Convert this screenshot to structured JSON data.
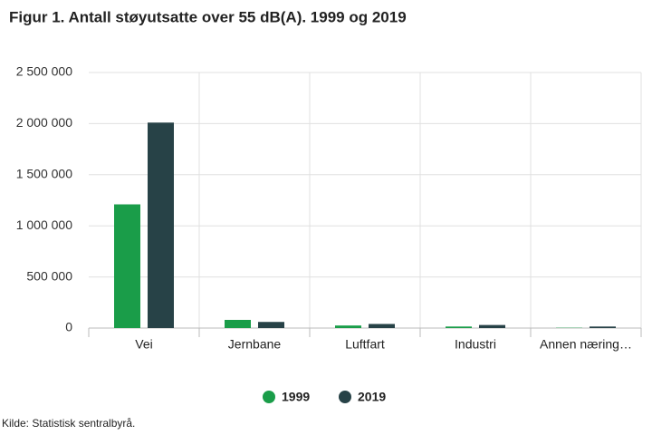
{
  "chart_data": {
    "type": "bar",
    "title": "Figur 1. Antall støyutsatte over 55 dB(A). 1999 og 2019",
    "categories": [
      "Vei",
      "Jernbane",
      "Luftfart",
      "Industri",
      "Annen næring…"
    ],
    "series": [
      {
        "name": "1999",
        "color": "#1a9d49",
        "values": [
          1210000,
          80000,
          25000,
          15000,
          3000
        ]
      },
      {
        "name": "2019",
        "color": "#274247",
        "values": [
          2010000,
          60000,
          40000,
          30000,
          15000
        ]
      }
    ],
    "ylim": [
      0,
      2500000
    ],
    "yticks": [
      0,
      {
        "value": 500000,
        "label": "500 000"
      },
      {
        "value": 1000000,
        "label": "1 000 000"
      },
      {
        "value": 1500000,
        "label": "1 500 000"
      },
      {
        "value": 2000000,
        "label": "2 000 000"
      },
      {
        "value": 2500000,
        "label": "2 500 000"
      }
    ],
    "grid": true,
    "legend": "bottom",
    "source": "Kilde: Statistisk sentralbyrå."
  }
}
